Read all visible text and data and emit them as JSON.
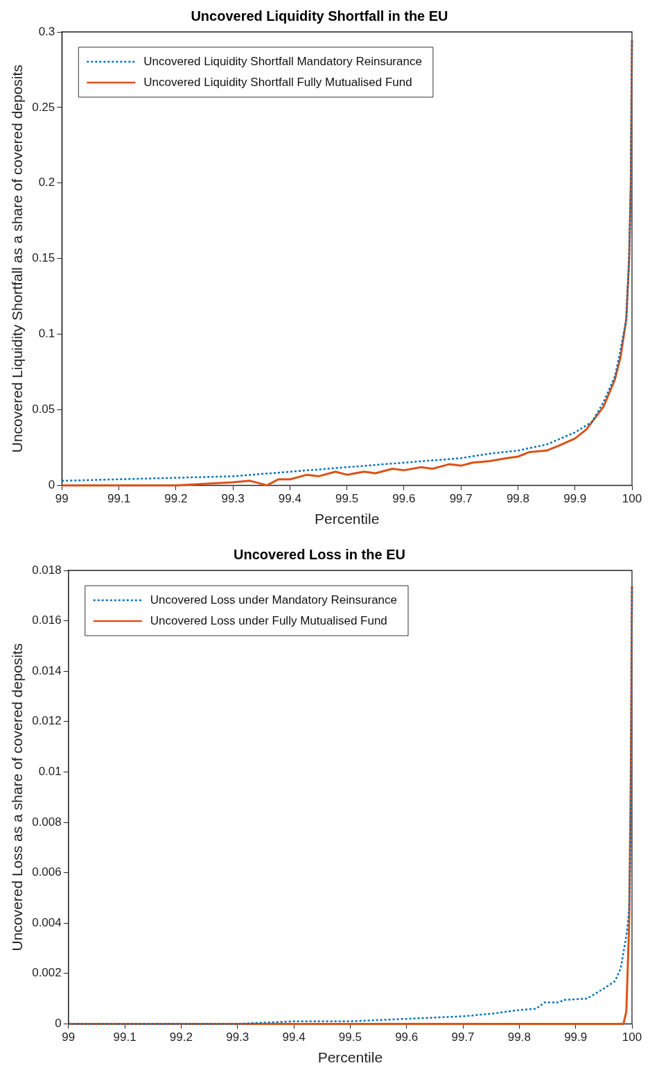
{
  "chart_data": [
    {
      "type": "line",
      "title": "Uncovered Liquidity Shortfall in the EU",
      "xlabel": "Percentile",
      "ylabel": "Uncovered Liquidity Shortfall as a share of covered deposits",
      "xlim": [
        99,
        100
      ],
      "xticks": [
        99,
        99.1,
        99.2,
        99.3,
        99.4,
        99.5,
        99.6,
        99.7,
        99.8,
        99.9,
        100
      ],
      "ylim": [
        0,
        0.3
      ],
      "yticks": [
        0,
        0.05,
        0.1,
        0.15,
        0.2,
        0.25,
        0.3
      ],
      "grid": false,
      "legend": "top left",
      "marker": "none",
      "series": [
        {
          "name": "Uncovered Liquidity Shortfall Mandatory Reinsurance",
          "color": "#0072bd",
          "line_style": "dotted",
          "x": [
            99,
            99.1,
            99.2,
            99.3,
            99.4,
            99.5,
            99.6,
            99.7,
            99.75,
            99.8,
            99.85,
            99.9,
            99.93,
            99.95,
            99.97,
            99.98,
            99.99,
            99.995,
            99.998,
            100
          ],
          "values": [
            0.003,
            0.004,
            0.005,
            0.006,
            0.009,
            0.012,
            0.015,
            0.018,
            0.021,
            0.023,
            0.027,
            0.035,
            0.042,
            0.055,
            0.072,
            0.09,
            0.11,
            0.15,
            0.2,
            0.295
          ]
        },
        {
          "name": "Uncovered Liquidity Shortfall Fully Mutualised Fund",
          "color": "#d95319",
          "line_style": "solid",
          "x": [
            99,
            99.1,
            99.2,
            99.25,
            99.3,
            99.33,
            99.36,
            99.38,
            99.4,
            99.43,
            99.45,
            99.48,
            99.5,
            99.53,
            99.55,
            99.58,
            99.6,
            99.63,
            99.65,
            99.68,
            99.7,
            99.72,
            99.75,
            99.78,
            99.8,
            99.82,
            99.85,
            99.87,
            99.9,
            99.92,
            99.95,
            99.97,
            99.98,
            99.99,
            99.995,
            99.998,
            100
          ],
          "values": [
            0,
            0,
            0,
            0.001,
            0.002,
            0.003,
            0,
            0.004,
            0.004,
            0.007,
            0.006,
            0.009,
            0.007,
            0.009,
            0.008,
            0.011,
            0.01,
            0.012,
            0.011,
            0.014,
            0.013,
            0.015,
            0.016,
            0.018,
            0.019,
            0.022,
            0.023,
            0.026,
            0.031,
            0.037,
            0.052,
            0.07,
            0.085,
            0.11,
            0.15,
            0.2,
            0.295
          ]
        }
      ]
    },
    {
      "type": "line",
      "title": "Uncovered Loss in the EU",
      "xlabel": "Percentile",
      "ylabel": "Uncovered Loss as a share of covered deposits",
      "xlim": [
        99,
        100
      ],
      "xticks": [
        99,
        99.1,
        99.2,
        99.3,
        99.4,
        99.5,
        99.6,
        99.7,
        99.8,
        99.9,
        100
      ],
      "ylim": [
        0,
        0.018
      ],
      "yticks": [
        0,
        0.002,
        0.004,
        0.006,
        0.008,
        0.01,
        0.012,
        0.014,
        0.016,
        0.018
      ],
      "grid": false,
      "legend": "top left",
      "marker": "none",
      "series": [
        {
          "name": "Uncovered Loss under Mandatory Reinsurance",
          "color": "#0072bd",
          "line_style": "dotted",
          "x": [
            99,
            99.1,
            99.2,
            99.3,
            99.4,
            99.5,
            99.6,
            99.7,
            99.75,
            99.8,
            99.83,
            99.845,
            99.87,
            99.88,
            99.92,
            99.95,
            99.97,
            99.98,
            99.99,
            99.995,
            99.998,
            100
          ],
          "values": [
            0,
            0,
            0,
            0,
            0.0001,
            0.0001,
            0.0002,
            0.0003,
            0.0004,
            0.00055,
            0.0006,
            0.00085,
            0.00085,
            0.00095,
            0.001,
            0.0014,
            0.0017,
            0.0022,
            0.0035,
            0.0045,
            0.008,
            0.0174
          ]
        },
        {
          "name": "Uncovered Loss under Fully Mutualised Fund",
          "color": "#d95319",
          "line_style": "solid",
          "x": [
            99,
            99.5,
            99.985,
            99.99,
            99.995,
            99.998,
            100
          ],
          "values": [
            0,
            0,
            0,
            0.0005,
            0.004,
            0.01,
            0.0174
          ]
        }
      ]
    }
  ]
}
